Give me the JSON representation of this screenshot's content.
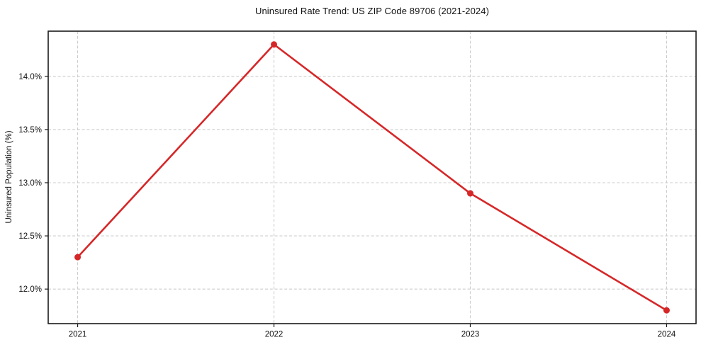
{
  "chart_data": {
    "type": "line",
    "title": "Uninsured Rate Trend: US ZIP Code 89706 (2021-2024)",
    "xlabel": "",
    "ylabel": "Uninsured Population (%)",
    "x": [
      2021,
      2022,
      2023,
      2024
    ],
    "xtick_labels": [
      "2021",
      "2022",
      "2023",
      "2024"
    ],
    "series": [
      {
        "name": "uninsured-rate",
        "values": [
          12.3,
          14.3,
          12.9,
          11.8
        ]
      }
    ],
    "yticks": [
      12.0,
      12.5,
      13.0,
      13.5,
      14.0
    ],
    "ytick_labels": [
      "12.0%",
      "12.5%",
      "13.0%",
      "13.5%",
      "14.0%"
    ],
    "xlim": [
      2020.85,
      2024.15
    ],
    "ylim": [
      11.675,
      14.425
    ],
    "grid": true,
    "grid_style": "dashed",
    "legend_position": "none",
    "colors": {
      "line": "#d62728",
      "marker": "#d62728",
      "grid": "#cccccc",
      "spine": "#1a1a1a",
      "text": "#111111",
      "background": "#ffffff"
    },
    "marker": "circle",
    "marker_radius": 4.5,
    "line_width": 2.6
  }
}
